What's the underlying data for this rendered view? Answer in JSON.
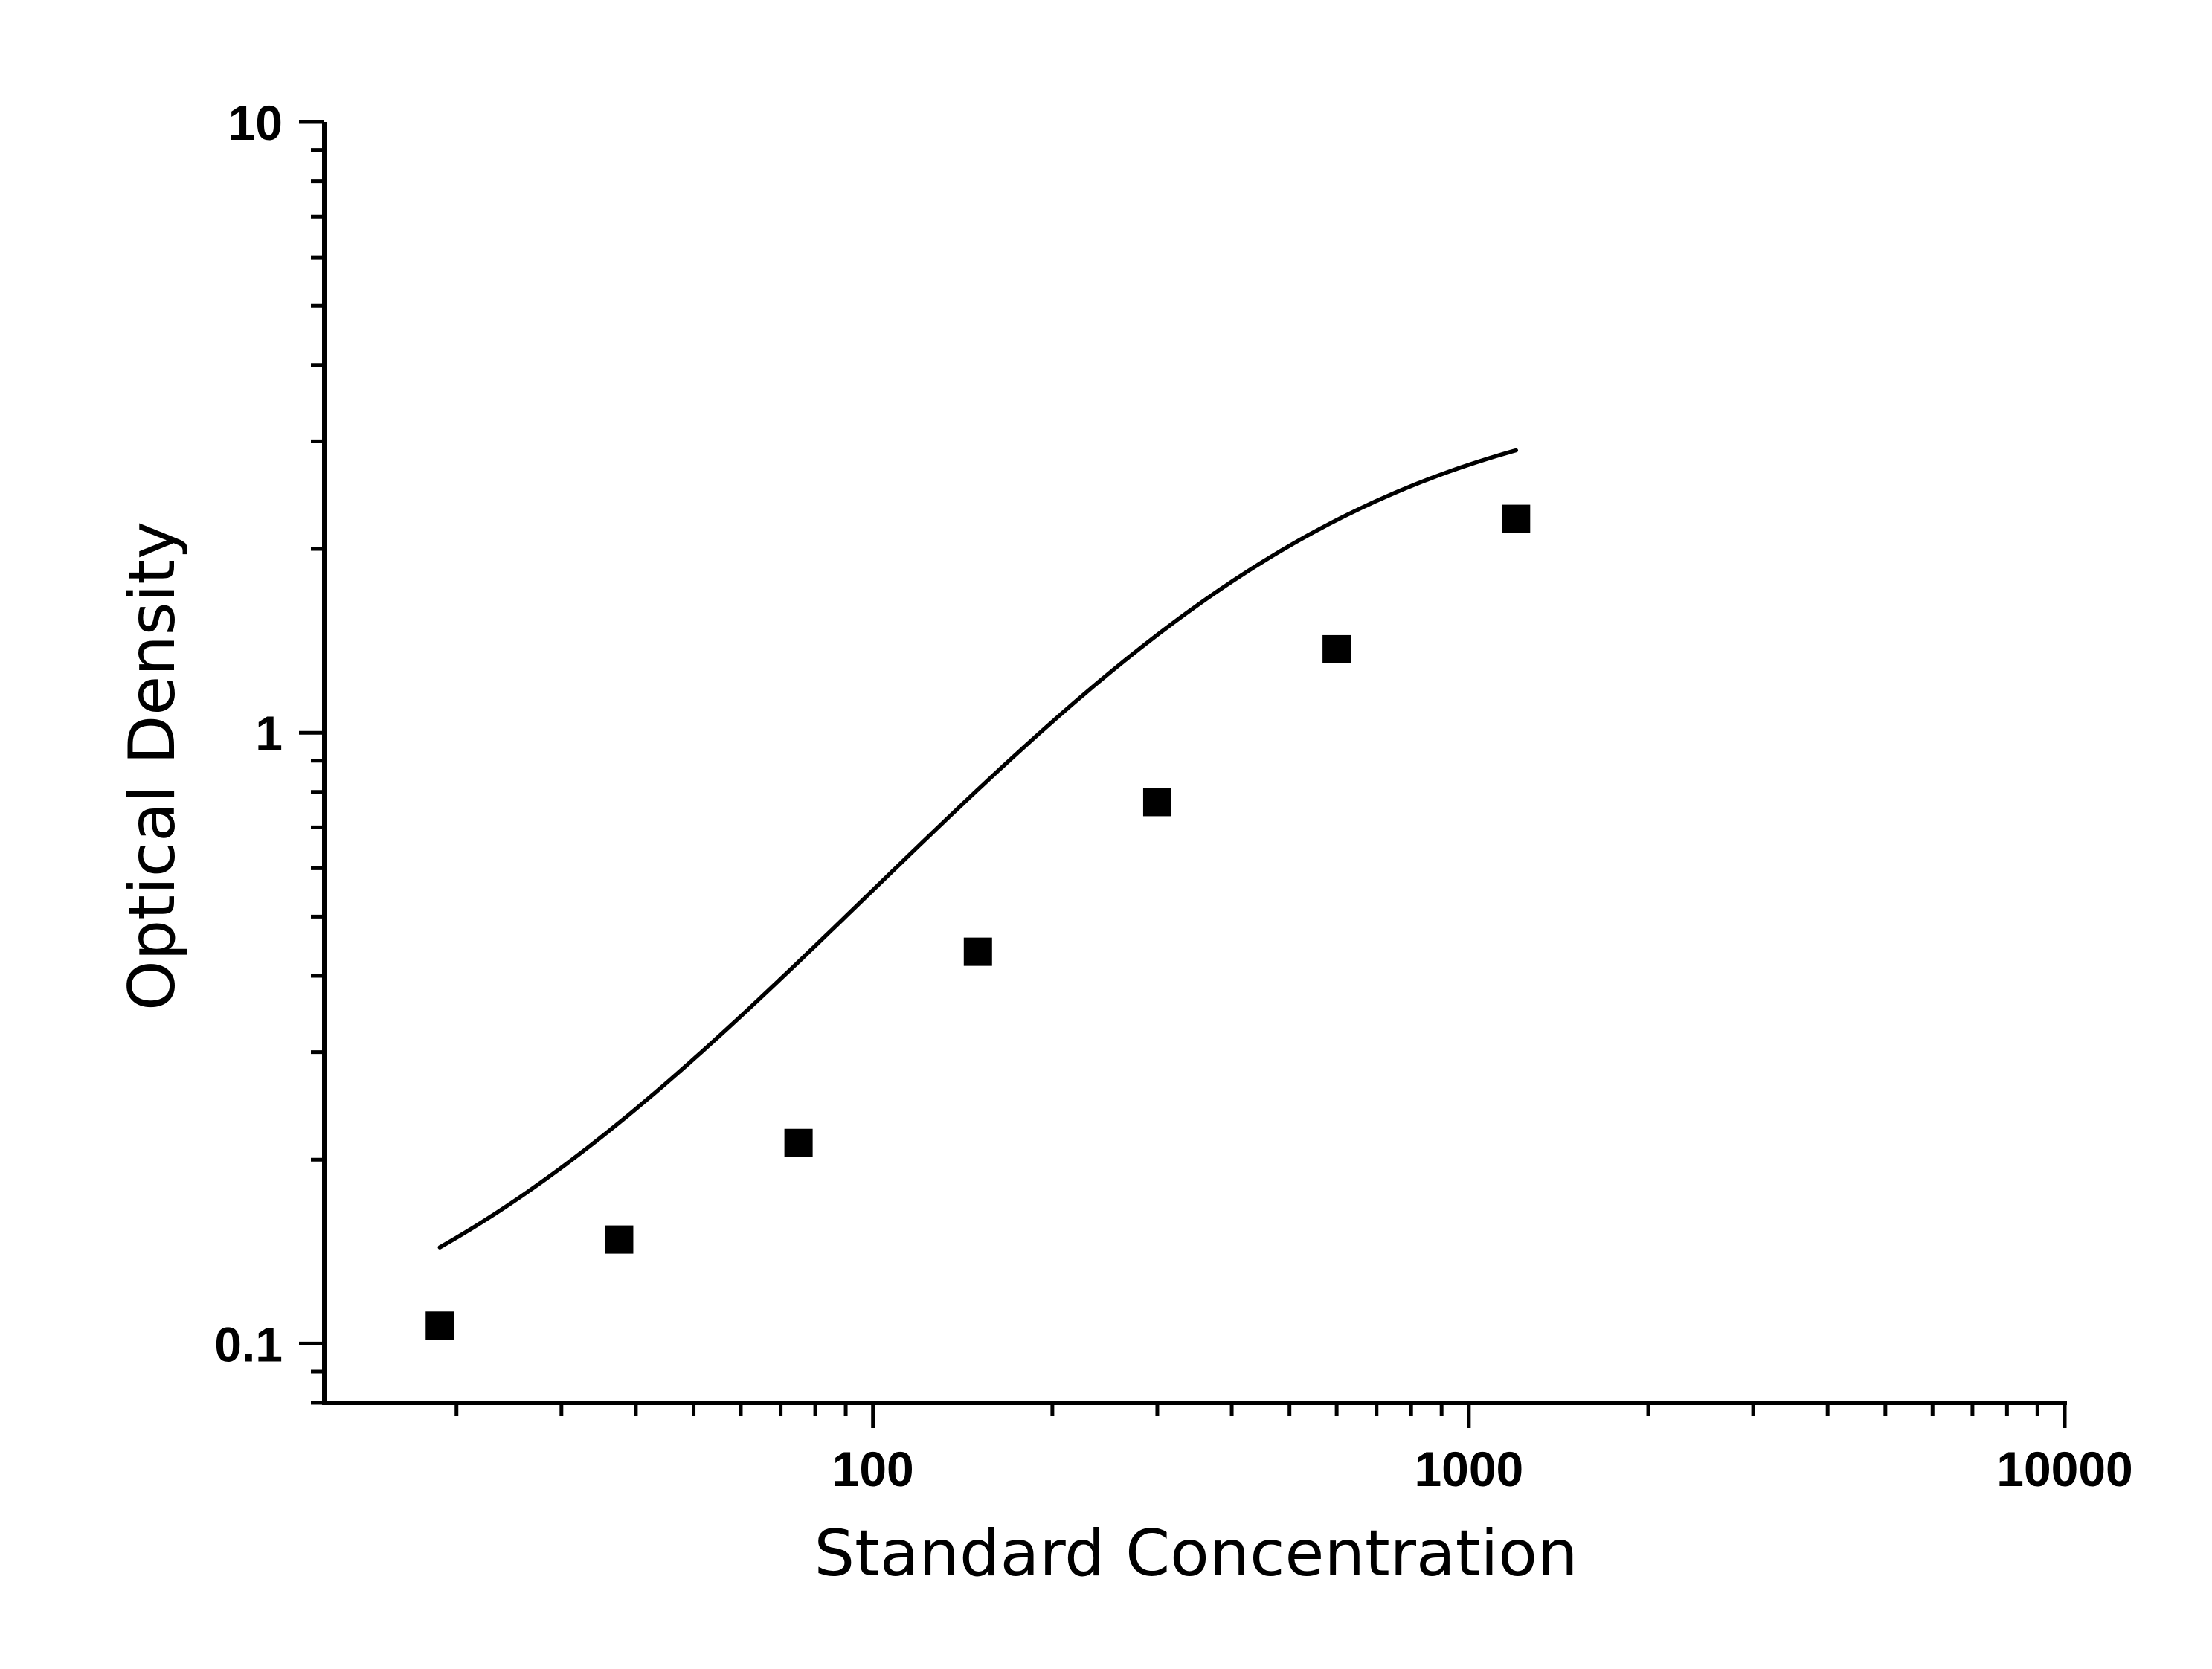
{
  "chart_data": {
    "type": "scatter",
    "title": "",
    "xlabel": "Standard Concentration",
    "ylabel": "Optical Density",
    "xscale": "log",
    "yscale": "log",
    "xlim": [
      12,
      10000
    ],
    "ylim": [
      0.08,
      10
    ],
    "x_ticks": [
      {
        "value": 100,
        "label": "100"
      },
      {
        "value": 1000,
        "label": "1000"
      },
      {
        "value": 10000,
        "label": "10000"
      }
    ],
    "y_ticks": [
      {
        "value": 0.1,
        "label": "0.1"
      },
      {
        "value": 1,
        "label": "1"
      },
      {
        "value": 10,
        "label": "10"
      }
    ],
    "grid": false,
    "legend": "none",
    "marker": "square",
    "color": "#000000",
    "series": [
      {
        "points": [
          {
            "x": 18.75,
            "y": 0.107
          },
          {
            "x": 37.5,
            "y": 0.148
          },
          {
            "x": 75,
            "y": 0.213
          },
          {
            "x": 150,
            "y": 0.438
          },
          {
            "x": 300,
            "y": 0.77
          },
          {
            "x": 600,
            "y": 1.37
          },
          {
            "x": 1200,
            "y": 2.24
          }
        ]
      }
    ],
    "fit_curve": {
      "type": "four-parameter-logistic",
      "x_range": [
        18.75,
        1200
      ]
    }
  }
}
